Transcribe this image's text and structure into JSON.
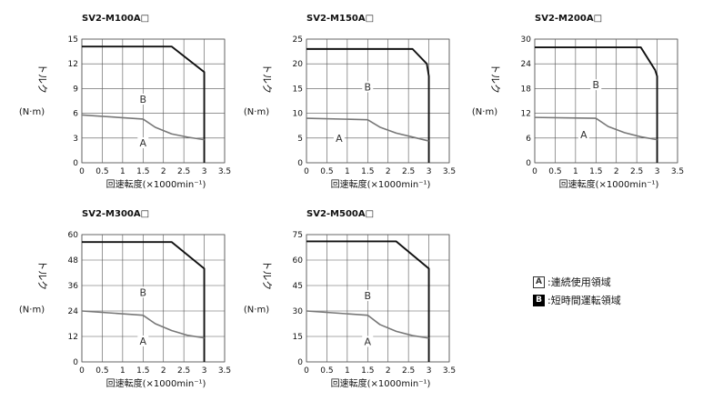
{
  "chart_data": [
    {
      "type": "line",
      "title": "SV2-M100A□",
      "ylabel_top": "トルク",
      "ylabel_bottom": "(N·m)",
      "xlabel": "回速転度(×1000min⁻¹)",
      "xlim": [
        0,
        3.5
      ],
      "ylim": [
        0,
        15
      ],
      "x_ticks": [
        "0",
        "0.5",
        "1",
        "1.5",
        "2",
        "2.5",
        "3",
        "3.5"
      ],
      "y_ticks": [
        "0",
        "3",
        "6",
        "9",
        "12",
        "15"
      ],
      "grid": true,
      "series": [
        {
          "name": "B",
          "x": [
            0,
            2.2,
            3,
            3
          ],
          "y": [
            14.1,
            14.1,
            11,
            0
          ]
        },
        {
          "name": "A",
          "x": [
            0,
            1.5,
            1.8,
            2.2,
            2.6,
            3
          ],
          "y": [
            5.8,
            5.3,
            4.3,
            3.5,
            3.1,
            2.8
          ]
        }
      ],
      "annotations": [
        {
          "text": "B",
          "x": 1.5,
          "y": 7.5
        },
        {
          "text": "A",
          "x": 1.5,
          "y": 2.2
        }
      ]
    },
    {
      "type": "line",
      "title": "SV2-M150A□",
      "ylabel_top": "トルク",
      "ylabel_bottom": "(N·m)",
      "xlabel": "回速転度(×1000min⁻¹)",
      "xlim": [
        0,
        3.5
      ],
      "ylim": [
        0,
        25
      ],
      "x_ticks": [
        "0",
        "0.5",
        "1",
        "1.5",
        "2",
        "2.5",
        "3",
        "3.5"
      ],
      "y_ticks": [
        "0",
        "5",
        "10",
        "15",
        "20",
        "25"
      ],
      "grid": true,
      "series": [
        {
          "name": "B",
          "x": [
            0,
            2.6,
            2.95,
            3,
            3
          ],
          "y": [
            23,
            23,
            20,
            17.5,
            0
          ]
        },
        {
          "name": "A",
          "x": [
            0,
            1.5,
            1.8,
            2.2,
            2.6,
            3
          ],
          "y": [
            9,
            8.7,
            7.2,
            6,
            5.2,
            4.4
          ]
        }
      ],
      "annotations": [
        {
          "text": "B",
          "x": 1.5,
          "y": 15
        },
        {
          "text": "A",
          "x": 0.8,
          "y": 4.6
        }
      ]
    },
    {
      "type": "line",
      "title": "SV2-M200A□",
      "ylabel_top": "トルク",
      "ylabel_bottom": "(N·m)",
      "xlabel": "回速転度(×1000min⁻¹)",
      "xlim": [
        0,
        3.5
      ],
      "ylim": [
        0,
        30
      ],
      "x_ticks": [
        "0",
        "0.5",
        "1",
        "1.5",
        "2",
        "2.5",
        "3",
        "3.5"
      ],
      "y_ticks": [
        "0",
        "6",
        "12",
        "18",
        "24",
        "30"
      ],
      "grid": true,
      "series": [
        {
          "name": "B",
          "x": [
            0,
            2.6,
            2.95,
            3,
            3
          ],
          "y": [
            28,
            28,
            22.5,
            21,
            0
          ]
        },
        {
          "name": "A",
          "x": [
            0,
            1.5,
            1.8,
            2.2,
            2.6,
            3
          ],
          "y": [
            11,
            10.8,
            8.8,
            7.3,
            6.3,
            5.6
          ]
        }
      ],
      "annotations": [
        {
          "text": "B",
          "x": 1.5,
          "y": 18.5
        },
        {
          "text": "A",
          "x": 1.2,
          "y": 6.4
        }
      ]
    },
    {
      "type": "line",
      "title": "SV2-M300A□",
      "ylabel_top": "トルク",
      "ylabel_bottom": "(N·m)",
      "xlabel": "回速転度(×1000min⁻¹)",
      "xlim": [
        0,
        3.5
      ],
      "ylim": [
        0,
        60
      ],
      "x_ticks": [
        "0",
        "0.5",
        "1",
        "1.5",
        "2",
        "2.5",
        "3",
        "3.5"
      ],
      "y_ticks": [
        "0",
        "12",
        "24",
        "36",
        "48",
        "60"
      ],
      "grid": true,
      "series": [
        {
          "name": "B",
          "x": [
            0,
            2.2,
            3,
            3
          ],
          "y": [
            56.5,
            56.5,
            44,
            0
          ]
        },
        {
          "name": "A",
          "x": [
            0,
            1.5,
            1.8,
            2.2,
            2.6,
            3
          ],
          "y": [
            24,
            22,
            18,
            14.8,
            12.5,
            11.3
          ]
        }
      ],
      "annotations": [
        {
          "text": "B",
          "x": 1.5,
          "y": 32
        },
        {
          "text": "A",
          "x": 1.5,
          "y": 9
        }
      ]
    },
    {
      "type": "line",
      "title": "SV2-M500A□",
      "ylabel_top": "トルク",
      "ylabel_bottom": "(N·m)",
      "xlabel": "回速転度(×1000min⁻¹)",
      "xlim": [
        0,
        3.5
      ],
      "ylim": [
        0,
        75
      ],
      "x_ticks": [
        "0",
        "0.5",
        "1",
        "1.5",
        "2",
        "2.5",
        "3",
        "3.5"
      ],
      "y_ticks": [
        "0",
        "15",
        "30",
        "45",
        "60",
        "75"
      ],
      "grid": true,
      "series": [
        {
          "name": "B",
          "x": [
            0,
            2.2,
            3,
            3
          ],
          "y": [
            71,
            71,
            55,
            0
          ]
        },
        {
          "name": "A",
          "x": [
            0,
            1.5,
            1.8,
            2.2,
            2.6,
            3
          ],
          "y": [
            30,
            27.5,
            22,
            18,
            15.5,
            14
          ]
        }
      ],
      "annotations": [
        {
          "text": "B",
          "x": 1.5,
          "y": 38
        },
        {
          "text": "A",
          "x": 1.5,
          "y": 11
        }
      ]
    }
  ],
  "legend": [
    {
      "key": "A",
      "text": ":連続使用領域"
    },
    {
      "key": "B",
      "text": ":短時間運転領域"
    }
  ],
  "colors": {
    "series_b": "#111111",
    "series_a": "#777777",
    "grid": "#555555",
    "text": "#111111"
  }
}
